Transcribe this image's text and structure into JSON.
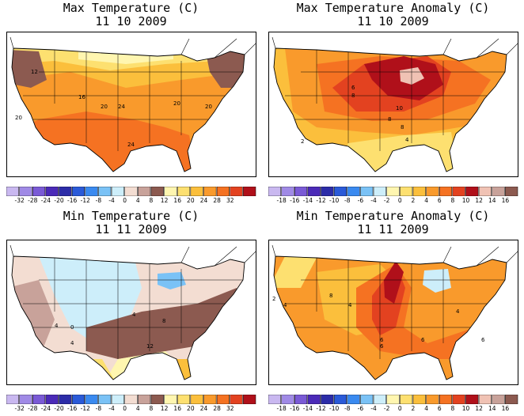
{
  "panels": [
    {
      "title": "Max Temperature (C)",
      "date": "11 10 2009",
      "colorbar": {
        "colors": [
          "#c9b8f0",
          "#a08ae6",
          "#7a5ad6",
          "#4b2ab8",
          "#2c2ca8",
          "#2a5ad8",
          "#3a8af0",
          "#7ac2f6",
          "#cdeefa",
          "#f3ddd2",
          "#c8a29a",
          "#8c5a50",
          "#fff6b0",
          "#fde070",
          "#fbbf3c",
          "#f99a2c",
          "#f57222",
          "#e34220",
          "#b0101a"
        ],
        "ticks": [
          "-32",
          "-28",
          "-24",
          "-20",
          "-16",
          "-12",
          "-8",
          "-4",
          "0",
          "4",
          "8",
          "12",
          "16",
          "20",
          "24",
          "28",
          "32"
        ]
      },
      "regions": [
        {
          "color": "#f99a2c"
        },
        {
          "color": "#fbbf3c"
        },
        {
          "color": "#fde070"
        },
        {
          "color": "#8c5a50"
        },
        {
          "color": "#f57222"
        },
        {
          "color": "#8c5a50"
        },
        {
          "color": "#fff6b0"
        }
      ],
      "labels": [
        "12",
        "16",
        "20",
        "20",
        "24",
        "20",
        "24",
        "20"
      ]
    },
    {
      "title": "Max Temperature Anomaly (C)",
      "date": "11 10 2009",
      "colorbar": {
        "colors": [
          "#c9b8f0",
          "#a08ae6",
          "#7a5ad6",
          "#4b2ab8",
          "#2c2ca8",
          "#2a5ad8",
          "#3a8af0",
          "#7ac2f6",
          "#cdeefa",
          "#fff6b0",
          "#fde070",
          "#fbbf3c",
          "#f99a2c",
          "#f57222",
          "#e34220",
          "#b0101a",
          "#f0c2b4",
          "#c8a29a",
          "#8c5a50"
        ],
        "ticks": [
          "-18",
          "-16",
          "-14",
          "-12",
          "-10",
          "-8",
          "-6",
          "-4",
          "-2",
          "0",
          "2",
          "4",
          "6",
          "8",
          "10",
          "12",
          "14",
          "16"
        ]
      },
      "regions": [
        {
          "color": "#fbbf3c"
        },
        {
          "color": "#f99a2c"
        },
        {
          "color": "#f57222"
        },
        {
          "color": "#e34220"
        },
        {
          "color": "#b0101a"
        },
        {
          "color": "#f0c2b4"
        },
        {
          "color": "#fde070"
        }
      ],
      "labels": [
        "6",
        "8",
        "10",
        "8",
        "8",
        "4",
        "2"
      ]
    },
    {
      "title": "Min Temperature (C)",
      "date": "11 11 2009",
      "colorbar": {
        "colors": [
          "#c9b8f0",
          "#a08ae6",
          "#7a5ad6",
          "#4b2ab8",
          "#2c2ca8",
          "#2a5ad8",
          "#3a8af0",
          "#7ac2f6",
          "#cdeefa",
          "#f3ddd2",
          "#c8a29a",
          "#8c5a50",
          "#fff6b0",
          "#fde070",
          "#fbbf3c",
          "#f99a2c",
          "#f57222",
          "#e34220",
          "#b0101a"
        ],
        "ticks": [
          "-32",
          "-28",
          "-24",
          "-20",
          "-16",
          "-12",
          "-8",
          "-4",
          "0",
          "4",
          "8",
          "12",
          "16",
          "20",
          "24",
          "28",
          "32"
        ]
      },
      "regions": [
        {
          "color": "#f3ddd2"
        },
        {
          "color": "#cdeefa"
        },
        {
          "color": "#c8a29a"
        },
        {
          "color": "#8c5a50"
        },
        {
          "color": "#fff6b0"
        },
        {
          "color": "#fde070"
        },
        {
          "color": "#fbbf3c"
        },
        {
          "color": "#7ac2f6"
        }
      ],
      "labels": [
        "0",
        "4",
        "4",
        "8",
        "12",
        "4"
      ]
    },
    {
      "title": "Min Temperature Anomaly (C)",
      "date": "11 11 2009",
      "colorbar": {
        "colors": [
          "#c9b8f0",
          "#a08ae6",
          "#7a5ad6",
          "#4b2ab8",
          "#2c2ca8",
          "#2a5ad8",
          "#3a8af0",
          "#7ac2f6",
          "#cdeefa",
          "#fff6b0",
          "#fde070",
          "#fbbf3c",
          "#f99a2c",
          "#f57222",
          "#e34220",
          "#b0101a",
          "#f0c2b4",
          "#c8a29a",
          "#8c5a50"
        ],
        "ticks": [
          "-18",
          "-16",
          "-14",
          "-12",
          "-10",
          "-8",
          "-6",
          "-4",
          "-2",
          "0",
          "2",
          "4",
          "6",
          "8",
          "10",
          "12",
          "14",
          "16"
        ]
      },
      "regions": [
        {
          "color": "#f99a2c"
        },
        {
          "color": "#fbbf3c"
        },
        {
          "color": "#f57222"
        },
        {
          "color": "#e34220"
        },
        {
          "color": "#b0101a"
        },
        {
          "color": "#fde070"
        },
        {
          "color": "#cdeefa"
        }
      ],
      "labels": [
        "2",
        "4",
        "4",
        "6",
        "6",
        "8",
        "6",
        "6",
        "4"
      ]
    }
  ]
}
